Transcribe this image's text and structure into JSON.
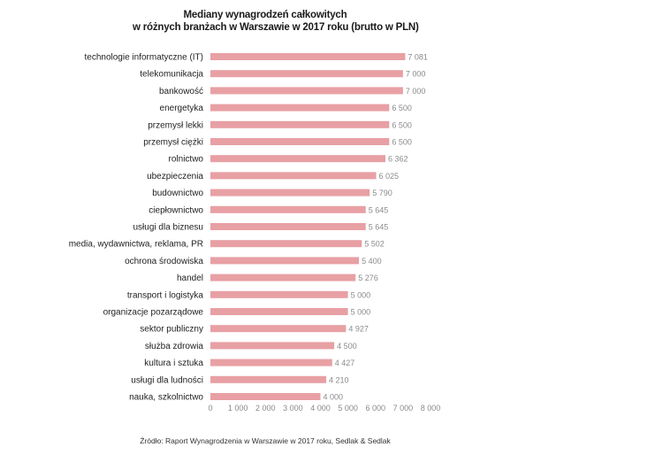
{
  "chart_data": {
    "type": "bar",
    "orientation": "horizontal",
    "title_lines": [
      "Mediany wynagrodzeń całkowitych",
      "w różnych branżach w Warszawie w 2017 roku (brutto w PLN)"
    ],
    "categories": [
      "technologie informatyczne (IT)",
      "telekomunikacja",
      "bankowość",
      "energetyka",
      "przemysł lekki",
      "przemysł ciężki",
      "rolnictwo",
      "ubezpieczenia",
      "budownictwo",
      "ciepłownictwo",
      "usługi dla biznesu",
      "media, wydawnictwa, reklama, PR",
      "ochrona środowiska",
      "handel",
      "transport i logistyka",
      "organizacje pozarządowe",
      "sektor publiczny",
      "służba zdrowia",
      "kultura i sztuka",
      "usługi dla ludności",
      "nauka, szkolnictwo"
    ],
    "values": [
      7081,
      7000,
      7000,
      6500,
      6500,
      6500,
      6362,
      6025,
      5790,
      5645,
      5645,
      5502,
      5400,
      5276,
      5000,
      5000,
      4927,
      4500,
      4427,
      4210,
      4000
    ],
    "value_labels": [
      "7 081",
      "7 000",
      "7 000",
      "6 500",
      "6 500",
      "6 500",
      "6 362",
      "6 025",
      "5 790",
      "5 645",
      "5 645",
      "5 502",
      "5 400",
      "5 276",
      "5 000",
      "5 000",
      "4 927",
      "4 500",
      "4 427",
      "4 210",
      "4 000"
    ],
    "xlim": [
      0,
      8000
    ],
    "x_ticks": [
      0,
      1000,
      2000,
      3000,
      4000,
      5000,
      6000,
      7000,
      8000
    ],
    "x_tick_labels": [
      "0",
      "1 000",
      "2 000",
      "3 000",
      "4 000",
      "5 000",
      "6 000",
      "7 000",
      "8 000"
    ],
    "bar_color": "#e8a0a4",
    "grid": false,
    "legend": "none"
  },
  "source_note": "Źródło: Raport Wynagrodzenia w Warszawie w 2017 roku, Sedlak & Sedlak"
}
